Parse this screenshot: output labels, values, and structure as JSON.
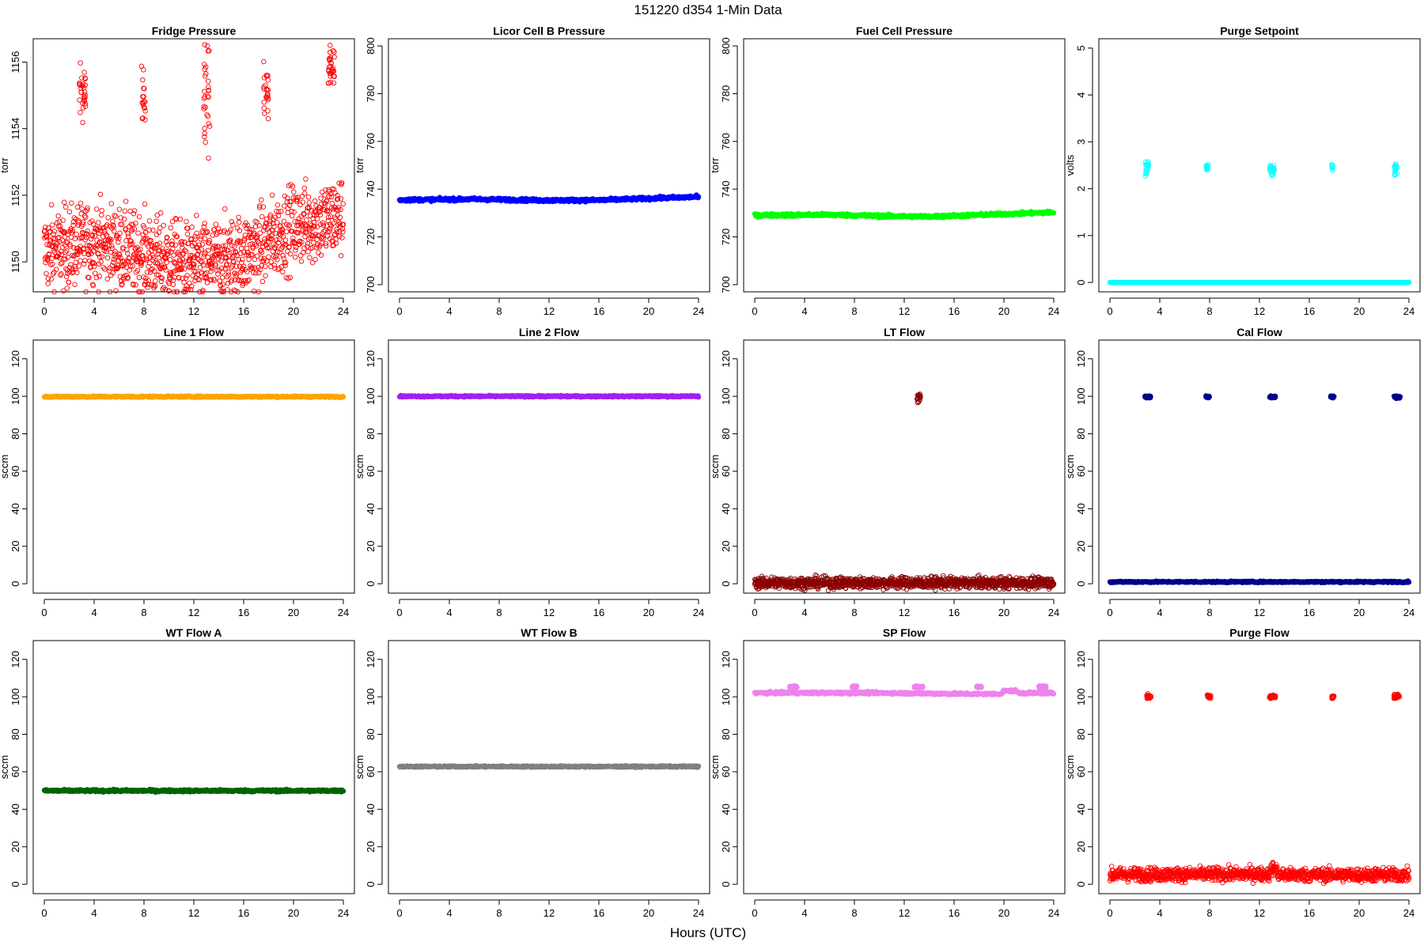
{
  "page": {
    "title": "151220   d354   1-Min Data",
    "xlabel": "Hours (UTC)"
  },
  "chart_data": [
    {
      "type": "scatter",
      "title": "Fridge Pressure",
      "ylabel": "torr",
      "xlim": [
        0,
        24
      ],
      "xticks": [
        0,
        4,
        8,
        12,
        16,
        20,
        24
      ],
      "ylim": [
        1149.1,
        1156.7
      ],
      "yticks": [
        1150,
        1152,
        1154,
        1156
      ],
      "color": "#ff0000",
      "marker": "open",
      "grid": false,
      "series": [
        {
          "kind": "noisy",
          "base": [
            [
              0,
              1150.3
            ],
            [
              4,
              1150.6
            ],
            [
              8,
              1150.2
            ],
            [
              12,
              1149.9
            ],
            [
              16,
              1150.2
            ],
            [
              18,
              1150.6
            ],
            [
              20,
              1151.1
            ],
            [
              22,
              1151.2
            ],
            [
              23,
              1151.3
            ],
            [
              24,
              1151.4
            ]
          ],
          "spread": 0.6
        },
        {
          "kind": "cluster",
          "segments": [
            [
              2.8,
              3.3,
              1155.1,
              0.45
            ],
            [
              7.8,
              8.1,
              1155.0,
              0.55
            ],
            [
              12.8,
              13.3,
              1155.0,
              0.9
            ],
            [
              17.6,
              18.0,
              1155.1,
              0.4
            ],
            [
              22.8,
              23.3,
              1155.8,
              0.4
            ]
          ]
        }
      ]
    },
    {
      "type": "scatter",
      "title": "Licor Cell B Pressure",
      "ylabel": "torr",
      "xlim": [
        0,
        24
      ],
      "xticks": [
        0,
        4,
        8,
        12,
        16,
        20,
        24
      ],
      "ylim": [
        697,
        803
      ],
      "yticks": [
        700,
        720,
        740,
        760,
        780,
        800
      ],
      "color": "#0000ff",
      "marker": "filled",
      "grid": false,
      "series": [
        {
          "kind": "line",
          "base": [
            [
              0,
              735.5
            ],
            [
              6,
              735.8
            ],
            [
              12,
              735.3
            ],
            [
              16,
              735.4
            ],
            [
              24,
              736.8
            ]
          ],
          "spread": 0.3
        }
      ]
    },
    {
      "type": "scatter",
      "title": "Fuel Cell Pressure",
      "ylabel": "torr",
      "xlim": [
        0,
        24
      ],
      "xticks": [
        0,
        4,
        8,
        12,
        16,
        20,
        24
      ],
      "ylim": [
        697,
        803
      ],
      "yticks": [
        700,
        720,
        740,
        760,
        780,
        800
      ],
      "color": "#00ff00",
      "marker": "filled",
      "grid": false,
      "series": [
        {
          "kind": "line",
          "base": [
            [
              0,
              729.1
            ],
            [
              6,
              729.3
            ],
            [
              10,
              728.8
            ],
            [
              14,
              728.5
            ],
            [
              24,
              730.3
            ]
          ],
          "spread": 0.3
        }
      ]
    },
    {
      "type": "scatter",
      "title": "Purge Setpoint",
      "ylabel": "volts",
      "xlim": [
        0,
        24
      ],
      "xticks": [
        0,
        4,
        8,
        12,
        16,
        20,
        24
      ],
      "ylim": [
        -0.2,
        5.2
      ],
      "yticks": [
        0,
        1,
        2,
        3,
        4,
        5
      ],
      "color": "#00ffff",
      "marker": "open",
      "grid": false,
      "series": [
        {
          "kind": "line",
          "base": [
            [
              0,
              0.0
            ],
            [
              24,
              0.0
            ]
          ],
          "spread": 0.0
        },
        {
          "kind": "cluster",
          "segments": [
            [
              2.8,
              3.1,
              2.43,
              0.07
            ],
            [
              7.7,
              7.9,
              2.45,
              0.04
            ],
            [
              12.8,
              13.2,
              2.42,
              0.07
            ],
            [
              17.8,
              17.9,
              2.47,
              0.03
            ],
            [
              22.8,
              23.1,
              2.43,
              0.07
            ]
          ]
        }
      ]
    },
    {
      "type": "scatter",
      "title": "Line 1 Flow",
      "ylabel": "sccm",
      "xlim": [
        0,
        24
      ],
      "xticks": [
        0,
        4,
        8,
        12,
        16,
        20,
        24
      ],
      "ylim": [
        -5,
        130
      ],
      "yticks": [
        0,
        20,
        40,
        60,
        80,
        100,
        120
      ],
      "color": "#ffa500",
      "marker": "filled",
      "grid": false,
      "series": [
        {
          "kind": "line",
          "base": [
            [
              0,
              99.8
            ],
            [
              24,
              99.8
            ]
          ],
          "spread": 0.2
        }
      ]
    },
    {
      "type": "scatter",
      "title": "Line 2 Flow",
      "ylabel": "sccm",
      "xlim": [
        0,
        24
      ],
      "xticks": [
        0,
        4,
        8,
        12,
        16,
        20,
        24
      ],
      "ylim": [
        -5,
        130
      ],
      "yticks": [
        0,
        20,
        40,
        60,
        80,
        100,
        120
      ],
      "color": "#a020f0",
      "marker": "filled",
      "grid": false,
      "series": [
        {
          "kind": "line",
          "base": [
            [
              0,
              100.0
            ],
            [
              24,
              100.0
            ]
          ],
          "spread": 0.2
        }
      ]
    },
    {
      "type": "scatter",
      "title": "LT Flow",
      "ylabel": "sccm",
      "xlim": [
        0,
        24
      ],
      "xticks": [
        0,
        4,
        8,
        12,
        16,
        20,
        24
      ],
      "ylim": [
        -5,
        130
      ],
      "yticks": [
        0,
        20,
        40,
        60,
        80,
        100,
        120
      ],
      "color": "#8b0000",
      "marker": "open",
      "grid": false,
      "series": [
        {
          "kind": "noisy",
          "base": [
            [
              0,
              0.5
            ],
            [
              24,
              0.5
            ]
          ],
          "spread": 1.5
        },
        {
          "kind": "cluster",
          "segments": [
            [
              13.0,
              13.3,
              99.6,
              1.2
            ]
          ]
        }
      ]
    },
    {
      "type": "scatter",
      "title": "Cal Flow",
      "ylabel": "sccm",
      "xlim": [
        0,
        24
      ],
      "xticks": [
        0,
        4,
        8,
        12,
        16,
        20,
        24
      ],
      "ylim": [
        -5,
        130
      ],
      "yticks": [
        0,
        20,
        40,
        60,
        80,
        100,
        120
      ],
      "color": "#00008b",
      "marker": "filled",
      "grid": false,
      "series": [
        {
          "kind": "line",
          "base": [
            [
              0,
              1.0
            ],
            [
              24,
              1.0
            ]
          ],
          "spread": 0.2
        },
        {
          "kind": "cluster",
          "segments": [
            [
              2.8,
              3.3,
              99.7,
              0.3
            ],
            [
              7.7,
              8.0,
              99.7,
              0.3
            ],
            [
              12.8,
              13.3,
              99.7,
              0.3
            ],
            [
              17.7,
              18.0,
              99.7,
              0.3
            ],
            [
              22.8,
              23.3,
              99.7,
              0.3
            ]
          ]
        }
      ]
    },
    {
      "type": "scatter",
      "title": "WT Flow A",
      "ylabel": "sccm",
      "xlim": [
        0,
        24
      ],
      "xticks": [
        0,
        4,
        8,
        12,
        16,
        20,
        24
      ],
      "ylim": [
        -5,
        130
      ],
      "yticks": [
        0,
        20,
        40,
        60,
        80,
        100,
        120
      ],
      "color": "#006400",
      "marker": "filled",
      "grid": false,
      "series": [
        {
          "kind": "line",
          "base": [
            [
              0,
              49.9
            ],
            [
              24,
              49.9
            ]
          ],
          "spread": 0.3
        }
      ]
    },
    {
      "type": "scatter",
      "title": "WT Flow B",
      "ylabel": "sccm",
      "xlim": [
        0,
        24
      ],
      "xticks": [
        0,
        4,
        8,
        12,
        16,
        20,
        24
      ],
      "ylim": [
        -5,
        130
      ],
      "yticks": [
        0,
        20,
        40,
        60,
        80,
        100,
        120
      ],
      "color": "#808080",
      "marker": "filled",
      "grid": false,
      "series": [
        {
          "kind": "line",
          "base": [
            [
              0,
              62.8
            ],
            [
              24,
              62.8
            ]
          ],
          "spread": 0.2
        }
      ]
    },
    {
      "type": "scatter",
      "title": "SP Flow",
      "ylabel": "sccm",
      "xlim": [
        0,
        24
      ],
      "xticks": [
        0,
        4,
        8,
        12,
        16,
        20,
        24
      ],
      "ylim": [
        -5,
        130
      ],
      "yticks": [
        0,
        20,
        40,
        60,
        80,
        100,
        120
      ],
      "color": "#ee82ee",
      "marker": "filled",
      "grid": false,
      "series": [
        {
          "kind": "line",
          "base": [
            [
              0,
              102.1
            ],
            [
              10,
              102.1
            ],
            [
              14,
              101.8
            ],
            [
              18,
              101.5
            ],
            [
              19.8,
              101.6
            ],
            [
              20.0,
              103.2
            ],
            [
              21.0,
              103.2
            ],
            [
              21.2,
              102.0
            ],
            [
              24,
              102.0
            ]
          ],
          "spread": 0.3
        },
        {
          "kind": "cluster",
          "segments": [
            [
              2.8,
              3.4,
              105.3,
              0.3
            ],
            [
              7.8,
              8.2,
              105.3,
              0.3
            ],
            [
              12.8,
              13.5,
              105.3,
              0.3
            ],
            [
              17.8,
              18.2,
              105.3,
              0.3
            ],
            [
              22.8,
              23.4,
              105.3,
              0.3
            ]
          ]
        }
      ]
    },
    {
      "type": "scatter",
      "title": "Purge Flow",
      "ylabel": "sccm",
      "xlim": [
        0,
        24
      ],
      "xticks": [
        0,
        4,
        8,
        12,
        16,
        20,
        24
      ],
      "ylim": [
        -5,
        130
      ],
      "yticks": [
        0,
        20,
        40,
        60,
        80,
        100,
        120
      ],
      "color": "#ff0000",
      "marker": "open",
      "grid": false,
      "series": [
        {
          "kind": "noisy",
          "base": [
            [
              0,
              5.2
            ],
            [
              12.8,
              5.4
            ],
            [
              13.0,
              8.5
            ],
            [
              13.3,
              8.5
            ],
            [
              13.5,
              5.0
            ],
            [
              24,
              5.0
            ]
          ],
          "spread": 1.8
        },
        {
          "kind": "cluster",
          "segments": [
            [
              2.9,
              3.3,
              100.1,
              0.6
            ],
            [
              7.8,
              8.1,
              100.1,
              0.6
            ],
            [
              12.8,
              13.3,
              100.1,
              0.6
            ],
            [
              17.8,
              18.0,
              100.1,
              0.6
            ],
            [
              22.8,
              23.3,
              100.1,
              0.6
            ]
          ]
        }
      ]
    }
  ]
}
